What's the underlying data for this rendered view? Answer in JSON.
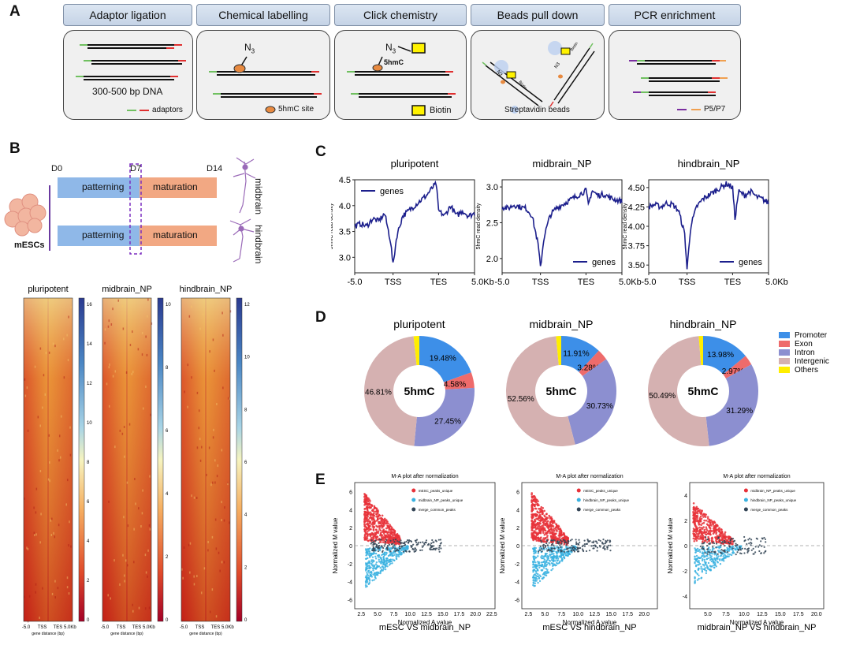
{
  "panels": {
    "a": "A",
    "b": "B",
    "c": "C",
    "d": "D",
    "e": "E"
  },
  "workflow": {
    "steps": [
      "Adaptor ligation",
      "Chemical labelling",
      "Click chemistry",
      "Beads pull down",
      "PCR enrichment"
    ],
    "dna_label": "300-500 bp DNA",
    "adaptors_label": "adaptors",
    "site_label": "5hmC site",
    "biotin_label": "Biotin",
    "beads_label": "Streptavidin beads",
    "p5p7_label": "P5/P7",
    "n3": "N",
    "n3_sub": "3",
    "hmc": "5hmC",
    "bead_biotin": "Biotin",
    "bead_n3": "N3",
    "bead_hmc": "5hmC"
  },
  "timeline": {
    "d0": "D0",
    "d7": "D7",
    "d14": "D14",
    "mescs": "mESCs",
    "patterning": "patterning",
    "maturation": "maturation",
    "midbrain": "midbrain",
    "hindbrain": "hindbrain"
  },
  "heatmaps": [
    {
      "title": "pluripotent",
      "ticks": [
        "16",
        "14",
        "12",
        "10",
        "8",
        "6",
        "4",
        "2",
        "0"
      ]
    },
    {
      "title": "midbrain_NP",
      "ticks": [
        "10",
        "8",
        "6",
        "4",
        "2",
        "0"
      ]
    },
    {
      "title": "hindbrain_NP",
      "ticks": [
        "12",
        "10",
        "8",
        "6",
        "4",
        "2",
        "0"
      ]
    }
  ],
  "heatmap_axis": {
    "ticks": [
      "-5.0",
      "TSS",
      "TES",
      "5.0Kb"
    ],
    "xlabel": "gene distance (bp)"
  },
  "chart_data": [
    {
      "type": "line",
      "title": "pluripotent",
      "ylabel": "5hmC read density",
      "legend": "genes",
      "xticks": [
        "-5.0",
        "TSS",
        "TES",
        "5.0Kb"
      ],
      "ylim": [
        2.7,
        4.5
      ],
      "yticks": [
        3.0,
        3.5,
        4.0,
        4.5
      ],
      "x": [
        0,
        0.05,
        0.1,
        0.15,
        0.2,
        0.25,
        0.3,
        0.32,
        0.35,
        0.4,
        0.45,
        0.5,
        0.55,
        0.6,
        0.65,
        0.68,
        0.7,
        0.75,
        0.8,
        0.85,
        0.9,
        0.95,
        1.0
      ],
      "values": [
        3.6,
        3.65,
        3.6,
        3.75,
        3.7,
        3.85,
        3.3,
        2.85,
        3.4,
        3.8,
        3.9,
        4.0,
        4.1,
        4.2,
        4.35,
        4.42,
        3.9,
        3.8,
        4.0,
        3.8,
        3.9,
        3.8,
        3.85
      ]
    },
    {
      "type": "line",
      "title": "midbrain_NP",
      "ylabel": "5hmC read density",
      "legend": "genes",
      "xticks": [
        "-5.0",
        "TSS",
        "TES",
        "5.0Kb"
      ],
      "ylim": [
        1.8,
        3.1
      ],
      "yticks": [
        2.0,
        2.5,
        3.0
      ],
      "x": [
        0,
        0.05,
        0.1,
        0.15,
        0.2,
        0.25,
        0.3,
        0.32,
        0.35,
        0.4,
        0.45,
        0.5,
        0.55,
        0.6,
        0.65,
        0.7,
        0.72,
        0.75,
        0.8,
        0.85,
        0.9,
        0.95,
        1.0
      ],
      "values": [
        2.72,
        2.7,
        2.75,
        2.72,
        2.7,
        2.6,
        2.2,
        1.88,
        2.3,
        2.6,
        2.7,
        2.75,
        2.8,
        2.85,
        2.9,
        2.95,
        2.75,
        2.95,
        2.88,
        2.9,
        2.85,
        2.82,
        2.8
      ]
    },
    {
      "type": "line",
      "title": "hindbrain_NP",
      "ylabel": "5hmC read density",
      "legend": "genes",
      "xticks": [
        "-5.0",
        "TSS",
        "TES",
        "5.0Kb"
      ],
      "ylim": [
        3.4,
        4.6
      ],
      "yticks": [
        3.5,
        3.75,
        4.0,
        4.25,
        4.5
      ],
      "x": [
        0,
        0.05,
        0.1,
        0.15,
        0.2,
        0.25,
        0.3,
        0.32,
        0.35,
        0.4,
        0.45,
        0.5,
        0.55,
        0.6,
        0.65,
        0.7,
        0.72,
        0.75,
        0.8,
        0.85,
        0.9,
        0.95,
        1.0
      ],
      "values": [
        4.25,
        4.28,
        4.25,
        4.3,
        4.28,
        4.2,
        3.9,
        3.45,
        4.0,
        4.25,
        4.35,
        4.4,
        4.45,
        4.5,
        4.55,
        4.5,
        4.1,
        4.45,
        4.4,
        4.45,
        4.38,
        4.35,
        4.3
      ]
    },
    {
      "type": "pie",
      "title": "pluripotent",
      "center": "5hmC",
      "categories": [
        "Promoter",
        "Exon",
        "Intron",
        "Intergenic",
        "Others"
      ],
      "values": [
        19.48,
        4.58,
        27.45,
        46.81,
        1.68
      ],
      "labels": [
        "19.48%",
        "4.58%",
        "27.45%",
        "46.81%",
        ""
      ]
    },
    {
      "type": "pie",
      "title": "midbrain_NP",
      "center": "5hmC",
      "categories": [
        "Promoter",
        "Exon",
        "Intron",
        "Intergenic",
        "Others"
      ],
      "values": [
        11.91,
        3.28,
        30.73,
        52.56,
        1.52
      ],
      "labels": [
        "11.91%",
        "3.28%",
        "30.73%",
        "52.56%",
        ""
      ]
    },
    {
      "type": "pie",
      "title": "hindbrain_NP",
      "center": "5hmC",
      "categories": [
        "Promoter",
        "Exon",
        "Intron",
        "Intergenic",
        "Others"
      ],
      "values": [
        13.98,
        2.97,
        31.29,
        50.49,
        1.27
      ],
      "labels": [
        "13.98%",
        "2.97%",
        "31.29%",
        "50.49%",
        ""
      ]
    },
    {
      "type": "scatter",
      "title": "M-A plot after normalization",
      "xlabel": "Normalized  A value",
      "ylabel": "Normalized  M value",
      "xlim": [
        1.5,
        23
      ],
      "ylim": [
        -7,
        7
      ],
      "xticks": [
        2.5,
        5.0,
        7.5,
        10.0,
        12.5,
        15.0,
        17.5,
        20.0,
        22.5
      ],
      "yticks": [
        -6,
        -4,
        -2,
        0,
        2,
        4,
        6
      ],
      "legend": [
        "mESC_peaks_unique",
        "midbrain_NP_peaks_unique",
        "merge_common_peaks"
      ],
      "comparison": "mESC    VS    midbrain_NP"
    },
    {
      "type": "scatter",
      "title": "M-A plot after normalization",
      "xlabel": "Normalized  A value",
      "ylabel": "Normalized  M value",
      "xlim": [
        1.5,
        22
      ],
      "ylim": [
        -7,
        7
      ],
      "xticks": [
        2.5,
        5.0,
        7.5,
        10.0,
        12.5,
        15.0,
        17.5,
        20.0
      ],
      "yticks": [
        -6,
        -4,
        -2,
        0,
        2,
        4,
        6
      ],
      "legend": [
        "mESC_peaks_unique",
        "hindbrain_NP_peaks_unique",
        "merge_common_peaks"
      ],
      "comparison": "mESC    VS    hindbrain_NP"
    },
    {
      "type": "scatter",
      "title": "M-A plot after normalization",
      "xlabel": "Normalized  A value",
      "ylabel": "Normalized  M value",
      "xlim": [
        2.5,
        21
      ],
      "ylim": [
        -5,
        5
      ],
      "xticks": [
        5.0,
        7.5,
        10.0,
        12.5,
        15.0,
        17.5,
        20.0
      ],
      "yticks": [
        -4,
        -2,
        0,
        2,
        4
      ],
      "legend": [
        "midbrain_NP_peaks_unique",
        "hindbrain_NP_peaks_unique",
        "merge_common_peaks"
      ],
      "comparison": "midbrain_NP    VS    hindbrain_NP"
    }
  ],
  "colors": {
    "promoter": "#3d8fe8",
    "exon": "#ee6b6b",
    "intron": "#8c8fd0",
    "intergenic": "#d5b1b1",
    "others": "#ffee00",
    "line": "#1c1f8c",
    "red_pts": "#e8323a",
    "blue_pts": "#3ab2e0",
    "dark_pts": "#334455"
  }
}
